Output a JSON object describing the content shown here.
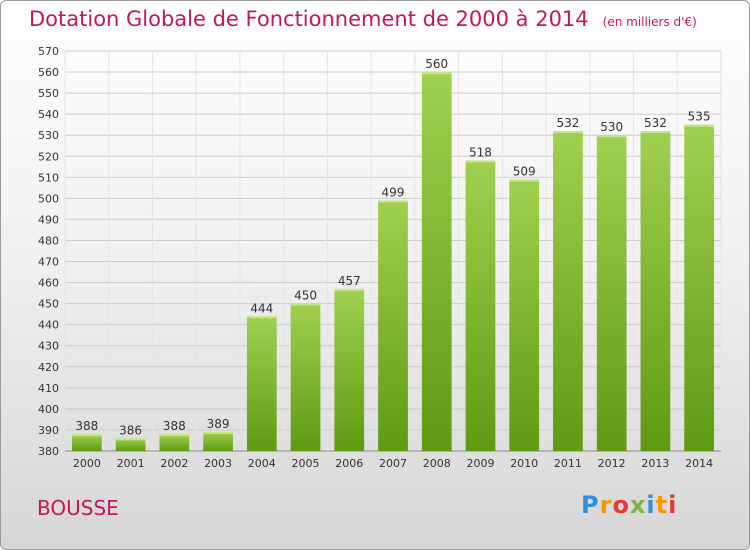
{
  "title": "Dotation Globale de Fonctionnement de 2000 à 2014",
  "unit": "(en milliers d'€)",
  "commune": "BOUSSE",
  "logo": {
    "text": "Proxiti",
    "letters": [
      {
        "ch": "P",
        "color": "#2f8fd8"
      },
      {
        "ch": "r",
        "color": "#f29a00"
      },
      {
        "ch": "o",
        "color": "#e53935"
      },
      {
        "ch": "x",
        "color": "#7cb342"
      },
      {
        "ch": "i",
        "color": "#2f8fd8"
      },
      {
        "ch": "t",
        "color": "#f29a00"
      },
      {
        "ch": "i",
        "color": "#e53935"
      }
    ]
  },
  "colors": {
    "title": "#c2185b",
    "bar_top": "#a0d050",
    "bar_bottom": "#5f9a12",
    "grid": "#cccccc"
  },
  "chart_data": {
    "type": "bar",
    "categories": [
      "2000",
      "2001",
      "2002",
      "2003",
      "2004",
      "2005",
      "2006",
      "2007",
      "2008",
      "2009",
      "2010",
      "2011",
      "2012",
      "2013",
      "2014"
    ],
    "values": [
      388,
      386,
      388,
      389,
      444,
      450,
      457,
      499,
      560,
      518,
      509,
      532,
      530,
      532,
      535
    ],
    "ylim": [
      380,
      570
    ],
    "ytick_step": 10,
    "grid": true,
    "legend": "none"
  }
}
